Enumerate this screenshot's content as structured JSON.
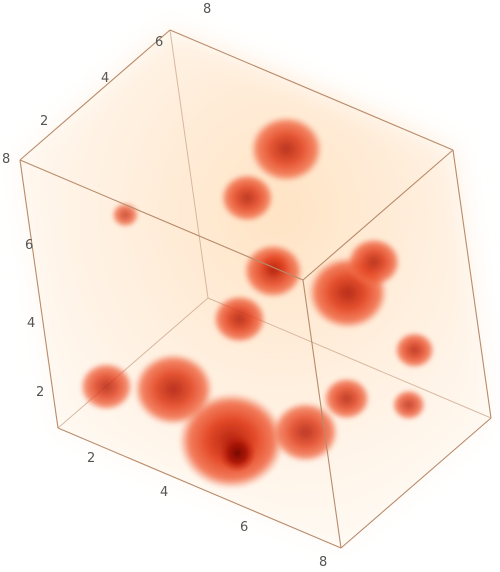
{
  "chart_data": {
    "type": "density3d",
    "colors": {
      "background_light": "#fff3e4",
      "glow": "#ffd6a8",
      "blob_outer": "#f0603a",
      "blob_mid": "#e6401f",
      "blob_core": "#9a0c00"
    },
    "x_axis": {
      "range": [
        0,
        8
      ],
      "ticks": [
        "2",
        "4",
        "6",
        "8"
      ]
    },
    "y_axis": {
      "range": [
        0,
        8
      ],
      "ticks": [
        "2",
        "4",
        "6",
        "8"
      ]
    },
    "z_axis": {
      "range": [
        0,
        8
      ],
      "ticks": [
        "2",
        "4",
        "6",
        "8"
      ]
    },
    "blobs": [
      {
        "x": 4.4,
        "y": 1.2,
        "z": 1.0,
        "r": 1.6,
        "density": 1.0
      },
      {
        "x": 2.5,
        "y": 1.8,
        "z": 1.4,
        "r": 1.2,
        "density": 0.85
      },
      {
        "x": 1.0,
        "y": 1.0,
        "z": 1.2,
        "r": 0.8,
        "density": 0.7
      },
      {
        "x": 6.4,
        "y": 3.8,
        "z": 1.9,
        "r": 0.7,
        "density": 0.7
      },
      {
        "x": 6.6,
        "y": 1.3,
        "z": 2.2,
        "r": 1.0,
        "density": 0.75
      },
      {
        "x": 3.2,
        "y": 4.3,
        "z": 2.6,
        "r": 0.8,
        "density": 0.8
      },
      {
        "x": 6.0,
        "y": 5.2,
        "z": 4.2,
        "r": 1.2,
        "density": 0.9
      },
      {
        "x": 3.0,
        "y": 5.8,
        "z": 5.4,
        "r": 0.8,
        "density": 0.75
      },
      {
        "x": 3.5,
        "y": 7.2,
        "z": 6.4,
        "r": 1.1,
        "density": 0.8
      },
      {
        "x": 6.0,
        "y": 1.8,
        "z": 6.5,
        "r": 0.9,
        "density": 0.8
      },
      {
        "x": 7.8,
        "y": 3.8,
        "z": 6.6,
        "r": 0.8,
        "density": 0.8
      },
      {
        "x": 7.7,
        "y": 5.3,
        "z": 3.2,
        "r": 0.6,
        "density": 0.7
      },
      {
        "x": 7.8,
        "y": 4.5,
        "z": 2.0,
        "r": 0.5,
        "density": 0.6
      },
      {
        "x": 0.4,
        "y": 4.0,
        "z": 4.6,
        "r": 0.4,
        "density": 0.45
      },
      {
        "x": 4.5,
        "y": 4.3,
        "z": 4.8,
        "r": 0.4,
        "density": 0.5
      }
    ]
  }
}
